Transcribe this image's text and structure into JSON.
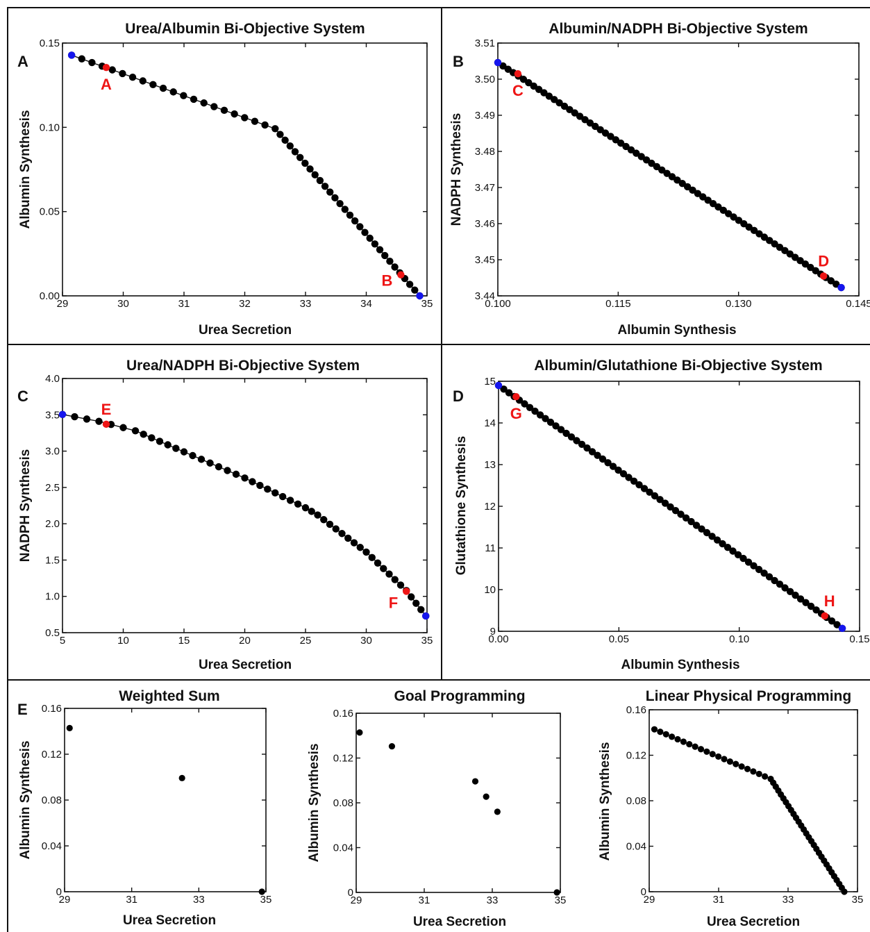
{
  "colors": {
    "point": "#000000",
    "extreme": "#1515ee",
    "highlight": "#ee1515"
  },
  "chart_data": [
    {
      "id": "A",
      "panel_label": "A",
      "type": "scatter",
      "title": "Urea/Albumin Bi-Objective System",
      "xlabel": "Urea Secretion",
      "ylabel": "Albumin Synthesis",
      "xlim": [
        29,
        35
      ],
      "ylim": [
        0,
        0.15
      ],
      "xticks": [
        29,
        30,
        31,
        32,
        33,
        34,
        35
      ],
      "xtick_labels": [
        "29",
        "30",
        "31",
        "32",
        "33",
        "34",
        "35"
      ],
      "yticks": [
        0,
        0.05,
        0.1,
        0.15
      ],
      "ytick_labels": [
        "0.00",
        "0.05",
        "0.10",
        "0.15"
      ],
      "connect": true,
      "generator": {
        "knots": [
          [
            29.15,
            0.1428
          ],
          [
            32.5,
            0.0992
          ],
          [
            34.88,
            0.0
          ]
        ],
        "counts": [
          20,
          29
        ]
      },
      "extremes": [
        [
          29.15,
          0.1428
        ],
        [
          34.88,
          0.0
        ]
      ],
      "highlights": [
        {
          "x": 29.72,
          "y": 0.1355,
          "label": "A"
        },
        {
          "x": 34.57,
          "y": 0.0125,
          "label": "B"
        }
      ]
    },
    {
      "id": "B",
      "panel_label": "B",
      "type": "scatter",
      "title": "Albumin/NADPH Bi-Objective System",
      "xlabel": "Albumin Synthesis",
      "ylabel": "NADPH Synthesis",
      "xlim": [
        0.1,
        0.145
      ],
      "ylim": [
        3.44,
        3.51
      ],
      "xticks": [
        0.1,
        0.115,
        0.13,
        0.145
      ],
      "xtick_labels": [
        "0.100",
        "0.115",
        "0.130",
        "0.145"
      ],
      "yticks": [
        3.44,
        3.45,
        3.46,
        3.47,
        3.48,
        3.49,
        3.5,
        3.51
      ],
      "ytick_labels": [
        "3.44",
        "3.45",
        "3.46",
        "3.47",
        "3.48",
        "3.49",
        "3.50",
        "3.51"
      ],
      "connect": true,
      "generator": {
        "knots": [
          [
            0.1,
            3.5046
          ],
          [
            0.1428,
            3.4423
          ]
        ],
        "counts": [
          67
        ]
      },
      "extremes": [
        [
          0.1,
          3.5046
        ],
        [
          0.1428,
          3.4423
        ]
      ],
      "highlights": [
        {
          "x": 0.1025,
          "y": 3.5015,
          "label": "C"
        },
        {
          "x": 0.1406,
          "y": 3.4455,
          "label": "D"
        }
      ]
    },
    {
      "id": "C",
      "panel_label": "C",
      "type": "scatter",
      "title": "Urea/NADPH Bi-Objective System",
      "xlabel": "Urea Secretion",
      "ylabel": "NADPH Synthesis",
      "xlim": [
        5,
        35
      ],
      "ylim": [
        0.5,
        4.0
      ],
      "xticks": [
        5,
        10,
        15,
        20,
        25,
        30,
        35
      ],
      "xtick_labels": [
        "5",
        "10",
        "15",
        "20",
        "25",
        "30",
        "35"
      ],
      "yticks": [
        0.5,
        1.0,
        1.5,
        2.0,
        2.5,
        3.0,
        3.5,
        4.0
      ],
      "ytick_labels": [
        "0.5",
        "1.0",
        "1.5",
        "2.0",
        "2.5",
        "3.0",
        "3.5",
        "4.0"
      ],
      "connect": true,
      "generator": {
        "knots": [
          [
            5.0,
            3.505
          ],
          [
            8.0,
            3.41
          ],
          [
            11.0,
            3.28
          ],
          [
            15.0,
            2.99
          ],
          [
            20.0,
            2.63
          ],
          [
            25.0,
            2.22
          ],
          [
            26.0,
            2.12
          ],
          [
            30.0,
            1.61
          ],
          [
            33.3,
            1.08
          ],
          [
            34.9,
            0.73
          ]
        ],
        "counts": [
          3,
          3,
          6,
          7,
          8,
          2,
          8,
          7,
          4
        ]
      },
      "extremes": [
        [
          5.0,
          3.505
        ],
        [
          34.9,
          0.73
        ]
      ],
      "highlights": [
        {
          "x": 8.6,
          "y": 3.37,
          "label": "E"
        },
        {
          "x": 33.3,
          "y": 1.07,
          "label": "F"
        }
      ]
    },
    {
      "id": "D",
      "panel_label": "D",
      "type": "scatter",
      "title": "Albumin/Glutathione Bi-Objective System",
      "xlabel": "Albumin Synthesis",
      "ylabel": "Glutathione Synthesis",
      "xlim": [
        0,
        0.15
      ],
      "ylim": [
        9,
        15
      ],
      "xticks": [
        0,
        0.05,
        0.1,
        0.15
      ],
      "xtick_labels": [
        "0.00",
        "0.05",
        "0.10",
        "0.15"
      ],
      "yticks": [
        9,
        10,
        11,
        12,
        13,
        14,
        15
      ],
      "ytick_labels": [
        "9",
        "10",
        "11",
        "12",
        "13",
        "14",
        "15"
      ],
      "connect": false,
      "generator": {
        "knots": [
          [
            0.0,
            14.9
          ],
          [
            0.1428,
            9.07
          ]
        ],
        "counts": [
          66
        ]
      },
      "extremes": [
        [
          0.0,
          14.9
        ],
        [
          0.1428,
          9.07
        ]
      ],
      "highlights": [
        {
          "x": 0.0073,
          "y": 14.63,
          "label": "G"
        },
        {
          "x": 0.1355,
          "y": 9.37,
          "label": "H"
        }
      ]
    },
    {
      "id": "E1",
      "panel_label": "E",
      "type": "scatter",
      "title": "Weighted Sum",
      "xlabel": "Urea Secretion",
      "ylabel": "Albumin Synthesis",
      "xlim": [
        29,
        35
      ],
      "ylim": [
        0,
        0.16
      ],
      "xticks": [
        29,
        31,
        33,
        35
      ],
      "xtick_labels": [
        "29",
        "31",
        "33",
        "35"
      ],
      "yticks": [
        0,
        0.04,
        0.08,
        0.12,
        0.16
      ],
      "ytick_labels": [
        "0",
        "0.04",
        "0.08",
        "0.12",
        "0.16"
      ],
      "connect": false,
      "points": [
        [
          29.15,
          0.1428
        ],
        [
          32.5,
          0.0992
        ],
        [
          34.88,
          0.0
        ]
      ],
      "highlights": []
    },
    {
      "id": "E2",
      "panel_label": "",
      "type": "scatter",
      "title": "Goal Programming",
      "xlabel": "Urea Secretion",
      "ylabel": "Albumin Synthesis",
      "xlim": [
        29,
        35
      ],
      "ylim": [
        0,
        0.16
      ],
      "xticks": [
        29,
        31,
        33,
        35
      ],
      "xtick_labels": [
        "29",
        "31",
        "33",
        "35"
      ],
      "yticks": [
        0,
        0.04,
        0.08,
        0.12,
        0.16
      ],
      "ytick_labels": [
        "0",
        "0.04",
        "0.08",
        "0.12",
        "0.16"
      ],
      "connect": false,
      "points": [
        [
          29.1,
          0.1428
        ],
        [
          30.05,
          0.1305
        ],
        [
          32.5,
          0.0992
        ],
        [
          32.82,
          0.0855
        ],
        [
          33.15,
          0.072
        ],
        [
          34.9,
          0.0
        ]
      ],
      "highlights": []
    },
    {
      "id": "E3",
      "panel_label": "",
      "type": "scatter",
      "title": "Linear Physical Programming",
      "xlabel": "Urea Secretion",
      "ylabel": "Albumin Synthesis",
      "xlim": [
        29,
        35
      ],
      "ylim": [
        0,
        0.16
      ],
      "xticks": [
        29,
        31,
        33,
        35
      ],
      "xtick_labels": [
        "29",
        "31",
        "33",
        "35"
      ],
      "yticks": [
        0,
        0.04,
        0.08,
        0.12,
        0.16
      ],
      "ytick_labels": [
        "0",
        "0.04",
        "0.08",
        "0.12",
        "0.16"
      ],
      "connect": false,
      "generator": {
        "knots": [
          [
            29.15,
            0.1428
          ],
          [
            32.5,
            0.0992
          ],
          [
            34.62,
            0.0
          ]
        ],
        "counts": [
          20,
          29
        ]
      },
      "highlights": []
    }
  ]
}
